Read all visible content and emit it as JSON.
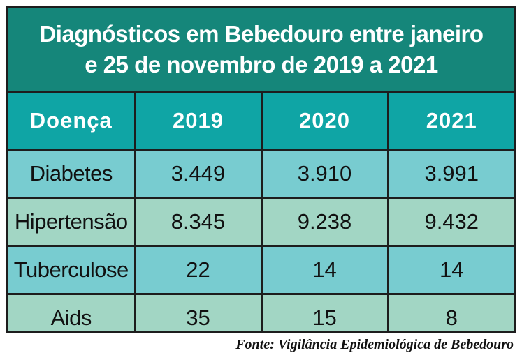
{
  "title_lines": [
    "Diagnósticos em Bebedouro entre janeiro",
    "e 25 de novembro de 2019 a 2021"
  ],
  "source": "Fonte: Vigilância Epidemiológica de Bebedouro",
  "colors": {
    "title_bg": "#15867a",
    "header_bg": "#0fa5a5",
    "row_blue": "#78ccd0",
    "row_green": "#a2d6c4",
    "border": "#1d1d1d"
  },
  "chart_data": {
    "type": "table",
    "title": "Diagnósticos em Bebedouro entre janeiro e 25 de novembro de 2019 a 2021",
    "columns": [
      "Doença",
      "2019",
      "2020",
      "2021"
    ],
    "rows": [
      [
        "Diabetes",
        "3.449",
        "3.910",
        "3.991"
      ],
      [
        "Hipertensão",
        "8.345",
        "9.238",
        "9.432"
      ],
      [
        "Tuberculose",
        "22",
        "14",
        "14"
      ],
      [
        "Aids",
        "35",
        "15",
        "8"
      ]
    ]
  }
}
